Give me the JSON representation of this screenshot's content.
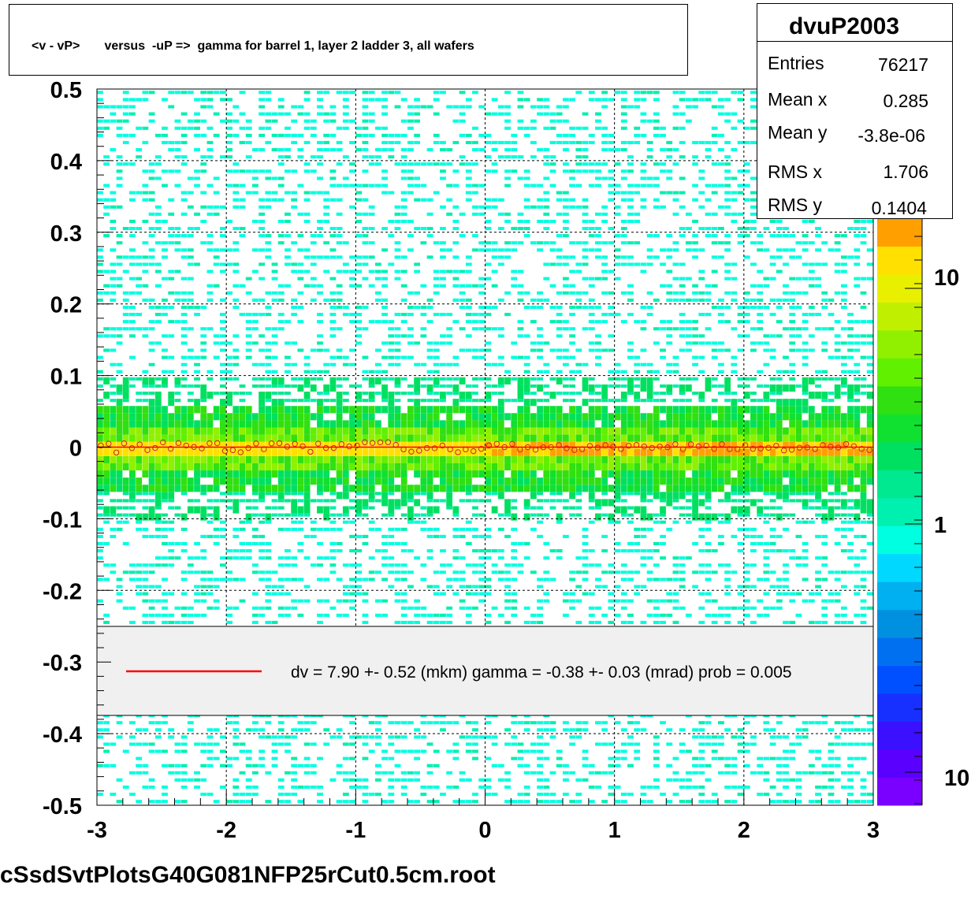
{
  "title": "<v - vP>       versus  -uP =>  gamma for barrel 1, layer 2 ladder 3, all wafers",
  "stats": {
    "name": "dvuP2003",
    "rows": [
      {
        "label": "Entries",
        "value": "76217"
      },
      {
        "label": "Mean x",
        "value": "0.285"
      },
      {
        "label": "Mean y",
        "value": "-3.8e-06"
      },
      {
        "label": "RMS x",
        "value": "1.706"
      },
      {
        "label": "RMS y",
        "value": "0.1404"
      }
    ]
  },
  "legend": {
    "text": "dv =    7.90 +-  0.52 (mkm) gamma =   -0.38 +-  0.03 (mrad) prob = 0.005",
    "line_color": "#ff0000"
  },
  "footer": "cSsdSvtPlotsG40G081NFP25rCut0.5cm.root",
  "chart_data": {
    "type": "heatmap",
    "xlim": [
      -3,
      3
    ],
    "ylim": [
      -0.5,
      0.5
    ],
    "x_ticks": [
      "-3",
      "-2",
      "-1",
      "0",
      "1",
      "2",
      "3"
    ],
    "y_ticks": [
      "0.5",
      "0.4",
      "0.3",
      "0.2",
      "0.1",
      "0",
      "-0.1",
      "-0.2",
      "-0.3",
      "-0.4",
      "-0.5"
    ],
    "grid": true,
    "z_scale": "log",
    "z_ticks": [
      "10",
      "1",
      "10"
    ],
    "palette": [
      "#7a00ff",
      "#5a00ff",
      "#3a10ff",
      "#1830ff",
      "#0050ff",
      "#0070f0",
      "#0090e0",
      "#00b0f0",
      "#00d8ff",
      "#00ffe0",
      "#00f0b0",
      "#00e890",
      "#00e060",
      "#10e030",
      "#30e010",
      "#60f000",
      "#90f000",
      "#c0f000",
      "#e8f000",
      "#ffe000",
      "#ffa000"
    ],
    "band_center": 0.0,
    "profile_points_y": 0.0
  }
}
